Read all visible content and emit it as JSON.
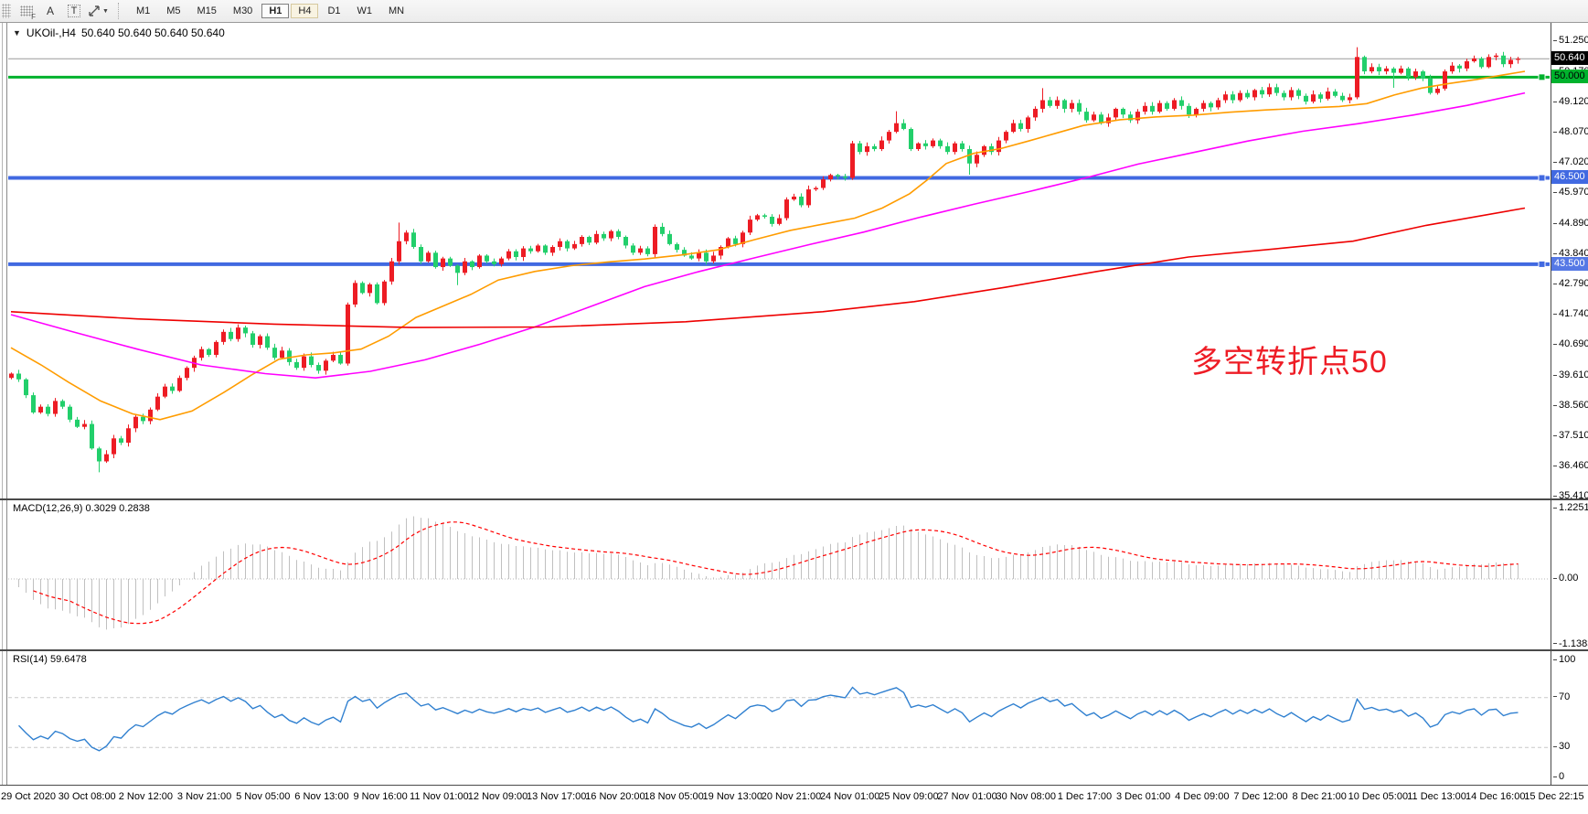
{
  "window": {
    "title_arrow": "▼",
    "symbol": "UKOil-,H4",
    "ohlc": "50.640 50.640 50.640 50.640"
  },
  "toolbar": {
    "tools": [
      {
        "name": "grid-f-icon",
        "glyph": "grid",
        "sub": "F"
      },
      {
        "name": "font-tool-icon",
        "glyph": "A",
        "sub": ""
      },
      {
        "name": "text-label-tool-icon",
        "glyph": "T",
        "sub": ""
      },
      {
        "name": "cursor-tool-icon",
        "glyph": "arrows",
        "sub": ""
      }
    ],
    "timeframes": [
      {
        "label": "M1",
        "style": ""
      },
      {
        "label": "M5",
        "style": ""
      },
      {
        "label": "M15",
        "style": ""
      },
      {
        "label": "M30",
        "style": ""
      },
      {
        "label": "H1",
        "style": "outlined"
      },
      {
        "label": "H4",
        "style": "active"
      },
      {
        "label": "D1",
        "style": ""
      },
      {
        "label": "W1",
        "style": ""
      },
      {
        "label": "MN",
        "style": ""
      }
    ]
  },
  "annotation": {
    "text": "多空转折点50",
    "color": "#ee1c25"
  },
  "indicators": {
    "macd": {
      "label": "MACD(12,26,9)",
      "values": "0.3029 0.2838",
      "axis": [
        "1.2251",
        "0.00",
        "-1.1383"
      ]
    },
    "rsi": {
      "label": "RSI(14)",
      "value": "59.6478",
      "axis": [
        "100",
        "70",
        "30",
        "0"
      ]
    }
  },
  "price_axis": {
    "labels": [
      "51.250",
      "50.170",
      "49.120",
      "48.070",
      "47.020",
      "45.970",
      "44.890",
      "43.840",
      "42.790",
      "41.740",
      "40.690",
      "39.610",
      "38.560",
      "37.510",
      "36.460",
      "35.410"
    ],
    "tags": [
      {
        "text": "50.640",
        "price": 50.64,
        "bg": "#000000",
        "fg": "#ffffff"
      },
      {
        "text": "50.000",
        "price": 50.0,
        "bg": "#00b22d",
        "fg": "#000000"
      },
      {
        "text": "46.500",
        "price": 46.5,
        "bg": "#4169e1",
        "fg": "#ffffff"
      },
      {
        "text": "43.500",
        "price": 43.5,
        "bg": "#5578e5",
        "fg": "#ffffff"
      }
    ]
  },
  "time_axis": {
    "labels": [
      "29 Oct 2020",
      "30 Oct 08:00",
      "2 Nov 12:00",
      "3 Nov 21:00",
      "5 Nov 05:00",
      "6 Nov 13:00",
      "9 Nov 16:00",
      "11 Nov 01:00",
      "12 Nov 09:00",
      "13 Nov 17:00",
      "16 Nov 20:00",
      "18 Nov 05:00",
      "19 Nov 13:00",
      "20 Nov 21:00",
      "24 Nov 01:00",
      "25 Nov 09:00",
      "27 Nov 01:00",
      "30 Nov 08:00",
      "1 Dec 17:00",
      "3 Dec 01:00",
      "4 Dec 09:00",
      "7 Dec 12:00",
      "8 Dec 21:00",
      "10 Dec 05:00",
      "11 Dec 13:00",
      "14 Dec 16:00",
      "15 Dec 22:15"
    ]
  },
  "chart_data": {
    "type": "candlestick",
    "symbol": "UKOil-",
    "timeframe": "H4",
    "title": "UKOil-,H4 50.640 50.640 50.640 50.640",
    "visible_price_range": [
      35.41,
      51.25
    ],
    "up_color": "#ed1c24",
    "down_color": "#22cf6b",
    "closes": [
      39.7,
      39.5,
      38.95,
      38.35,
      38.55,
      38.3,
      38.75,
      38.55,
      38.1,
      37.85,
      37.95,
      37.1,
      36.65,
      36.9,
      37.45,
      37.3,
      37.8,
      38.2,
      38.05,
      38.45,
      38.9,
      39.25,
      39.1,
      39.55,
      39.9,
      40.25,
      40.55,
      40.35,
      40.8,
      41.15,
      40.9,
      41.3,
      41.1,
      40.7,
      41.0,
      40.6,
      40.25,
      40.5,
      40.1,
      39.9,
      40.3,
      40.0,
      39.8,
      40.15,
      40.35,
      40.05,
      42.1,
      42.85,
      42.5,
      42.8,
      42.15,
      42.9,
      43.6,
      44.3,
      44.6,
      44.1,
      43.6,
      43.9,
      43.4,
      43.7,
      43.45,
      43.2,
      43.6,
      43.4,
      43.8,
      43.6,
      43.5,
      43.7,
      43.95,
      43.75,
      44.05,
      43.95,
      44.15,
      43.9,
      44.1,
      44.3,
      44.05,
      44.2,
      44.45,
      44.25,
      44.55,
      44.4,
      44.65,
      44.45,
      44.15,
      43.9,
      44.05,
      43.85,
      44.8,
      44.55,
      44.2,
      44.0,
      43.8,
      43.7,
      43.9,
      43.6,
      43.8,
      44.1,
      44.4,
      44.2,
      44.6,
      45.05,
      45.2,
      45.15,
      44.9,
      45.1,
      45.75,
      45.85,
      45.55,
      46.1,
      46.15,
      46.45,
      46.6,
      46.55,
      46.5,
      47.7,
      47.4,
      47.6,
      47.5,
      47.8,
      48.1,
      48.4,
      48.2,
      47.5,
      47.7,
      47.6,
      47.8,
      47.6,
      47.4,
      47.7,
      47.5,
      47.0,
      47.3,
      47.6,
      47.4,
      47.8,
      48.1,
      48.4,
      48.2,
      48.6,
      48.9,
      49.2,
      49.0,
      49.2,
      48.9,
      49.1,
      48.8,
      48.5,
      48.7,
      48.4,
      48.6,
      48.9,
      48.7,
      48.5,
      48.8,
      49.0,
      48.8,
      49.1,
      48.9,
      49.2,
      49.0,
      48.7,
      48.9,
      49.1,
      48.95,
      49.2,
      49.4,
      49.2,
      49.45,
      49.3,
      49.55,
      49.4,
      49.65,
      49.45,
      49.3,
      49.55,
      49.35,
      49.15,
      49.4,
      49.25,
      49.5,
      49.35,
      49.2,
      49.3,
      50.7,
      50.2,
      50.35,
      50.2,
      50.3,
      50.15,
      50.3,
      50.0,
      50.2,
      49.95,
      49.45,
      49.6,
      50.2,
      50.4,
      50.3,
      50.55,
      50.65,
      50.35,
      50.7,
      50.75,
      50.45,
      50.6,
      50.64
    ],
    "wick_overrides": {
      "12": [
        0,
        0.3
      ],
      "53": [
        0.55,
        0
      ],
      "61": [
        0,
        0.3
      ],
      "121": [
        0.3,
        0
      ],
      "131": [
        0,
        0.25
      ],
      "141": [
        0.3,
        0
      ],
      "184": [
        0.3,
        0
      ],
      "189": [
        0,
        0.45
      ]
    },
    "hlines": [
      {
        "price": 50.64,
        "color": "#9a9a9a",
        "width": 1,
        "marker": false
      },
      {
        "price": 50.0,
        "color": "#00b22d",
        "width": 3,
        "marker": true
      },
      {
        "price": 46.5,
        "color": "#4169e1",
        "width": 4,
        "marker": true
      },
      {
        "price": 43.5,
        "color": "#4169e1",
        "width": 4,
        "marker": true
      }
    ],
    "moving_averages": [
      {
        "name": "ma-fast",
        "color": "#ff9c00",
        "points": [
          [
            12,
            40.6
          ],
          [
            45,
            40.0
          ],
          [
            75,
            39.4
          ],
          [
            110,
            38.75
          ],
          [
            145,
            38.3
          ],
          [
            175,
            38.1
          ],
          [
            210,
            38.4
          ],
          [
            245,
            39.05
          ],
          [
            275,
            39.65
          ],
          [
            305,
            40.2
          ],
          [
            335,
            40.35
          ],
          [
            365,
            40.42
          ],
          [
            395,
            40.55
          ],
          [
            425,
            41.0
          ],
          [
            455,
            41.65
          ],
          [
            485,
            42.05
          ],
          [
            515,
            42.45
          ],
          [
            545,
            42.95
          ],
          [
            585,
            43.25
          ],
          [
            625,
            43.45
          ],
          [
            665,
            43.58
          ],
          [
            705,
            43.68
          ],
          [
            745,
            43.82
          ],
          [
            785,
            44.0
          ],
          [
            825,
            44.35
          ],
          [
            865,
            44.68
          ],
          [
            905,
            44.92
          ],
          [
            935,
            45.1
          ],
          [
            965,
            45.45
          ],
          [
            995,
            45.95
          ],
          [
            1015,
            46.45
          ],
          [
            1035,
            47.0
          ],
          [
            1065,
            47.35
          ],
          [
            1095,
            47.52
          ],
          [
            1125,
            47.78
          ],
          [
            1155,
            48.05
          ],
          [
            1185,
            48.32
          ],
          [
            1225,
            48.52
          ],
          [
            1265,
            48.62
          ],
          [
            1305,
            48.68
          ],
          [
            1345,
            48.78
          ],
          [
            1385,
            48.86
          ],
          [
            1425,
            48.92
          ],
          [
            1465,
            48.98
          ],
          [
            1495,
            49.08
          ],
          [
            1525,
            49.38
          ],
          [
            1555,
            49.62
          ],
          [
            1585,
            49.78
          ],
          [
            1615,
            49.92
          ],
          [
            1645,
            50.08
          ],
          [
            1668,
            50.2
          ]
        ]
      },
      {
        "name": "ma-mid",
        "color": "#ff00ff",
        "points": [
          [
            12,
            41.75
          ],
          [
            80,
            41.15
          ],
          [
            150,
            40.55
          ],
          [
            220,
            40.0
          ],
          [
            290,
            39.7
          ],
          [
            345,
            39.55
          ],
          [
            405,
            39.78
          ],
          [
            465,
            40.18
          ],
          [
            525,
            40.72
          ],
          [
            585,
            41.32
          ],
          [
            645,
            42.02
          ],
          [
            705,
            42.72
          ],
          [
            765,
            43.25
          ],
          [
            825,
            43.72
          ],
          [
            885,
            44.18
          ],
          [
            945,
            44.62
          ],
          [
            1005,
            45.12
          ],
          [
            1065,
            45.58
          ],
          [
            1125,
            46.02
          ],
          [
            1185,
            46.48
          ],
          [
            1245,
            46.98
          ],
          [
            1305,
            47.38
          ],
          [
            1365,
            47.78
          ],
          [
            1425,
            48.12
          ],
          [
            1485,
            48.38
          ],
          [
            1545,
            48.68
          ],
          [
            1605,
            49.02
          ],
          [
            1668,
            49.45
          ]
        ]
      },
      {
        "name": "ma-slow",
        "color": "#ee0000",
        "points": [
          [
            12,
            41.85
          ],
          [
            150,
            41.6
          ],
          [
            300,
            41.42
          ],
          [
            450,
            41.3
          ],
          [
            600,
            41.32
          ],
          [
            750,
            41.5
          ],
          [
            900,
            41.85
          ],
          [
            1000,
            42.2
          ],
          [
            1100,
            42.7
          ],
          [
            1200,
            43.25
          ],
          [
            1300,
            43.75
          ],
          [
            1400,
            44.05
          ],
          [
            1480,
            44.3
          ],
          [
            1560,
            44.85
          ],
          [
            1668,
            45.45
          ]
        ]
      }
    ],
    "macd": {
      "params": [
        12,
        26,
        9
      ],
      "current": [
        0.3029,
        0.2838
      ],
      "range": [
        -1.1383,
        1.2251
      ],
      "hist_color": "#c0c0c0",
      "signal_color": "#ff0000"
    },
    "rsi": {
      "period": 14,
      "current": 59.6478,
      "levels": [
        70,
        30
      ],
      "range": [
        0,
        100
      ],
      "color": "#3080d0"
    }
  }
}
